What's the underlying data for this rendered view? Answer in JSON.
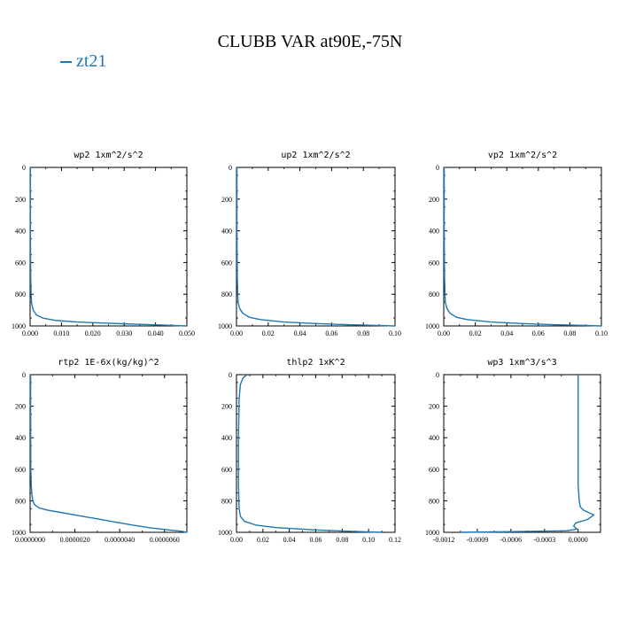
{
  "figure": {
    "title": "CLUBB VAR at90E,-75N",
    "legend": [
      {
        "label": "zt21",
        "color": "#1f77b4"
      }
    ]
  },
  "chart_data": [
    {
      "type": "line",
      "title": "wp2   1xm^2/s^2",
      "xlim": [
        0,
        0.05
      ],
      "ylim": [
        1000,
        0
      ],
      "x_ticks": [
        "0.000",
        "0.010",
        "0.020",
        "0.030",
        "0.040",
        "0.050"
      ],
      "y_ticks": [
        "0",
        "200",
        "400",
        "600",
        "800",
        "1000"
      ],
      "series": [
        {
          "name": "zt21",
          "x": [
            0.0001,
            0.0001,
            0.0002,
            0.0003,
            0.0005,
            0.001,
            0.002,
            0.004,
            0.008,
            0.015,
            0.025,
            0.035,
            0.045,
            0.05
          ],
          "y": [
            0,
            400,
            700,
            800,
            860,
            900,
            930,
            950,
            965,
            975,
            983,
            990,
            996,
            1000
          ]
        }
      ]
    },
    {
      "type": "line",
      "title": "up2   1xm^2/s^2",
      "xlim": [
        0,
        0.1
      ],
      "ylim": [
        1000,
        0
      ],
      "x_ticks": [
        "0.00",
        "0.02",
        "0.04",
        "0.06",
        "0.08",
        "0.10"
      ],
      "y_ticks": [
        "0",
        "200",
        "400",
        "600",
        "800",
        "1000"
      ],
      "series": [
        {
          "name": "zt21",
          "x": [
            0.0003,
            0.0003,
            0.0005,
            0.0008,
            0.001,
            0.002,
            0.004,
            0.008,
            0.015,
            0.03,
            0.05,
            0.07,
            0.09,
            0.1
          ],
          "y": [
            0,
            400,
            700,
            800,
            850,
            890,
            920,
            945,
            960,
            975,
            985,
            992,
            997,
            1000
          ]
        }
      ]
    },
    {
      "type": "line",
      "title": "vp2   1xm^2/s^2",
      "xlim": [
        0,
        0.1
      ],
      "ylim": [
        1000,
        0
      ],
      "x_ticks": [
        "0.00",
        "0.02",
        "0.04",
        "0.06",
        "0.08",
        "0.10"
      ],
      "y_ticks": [
        "0",
        "200",
        "400",
        "600",
        "800",
        "1000"
      ],
      "series": [
        {
          "name": "zt21",
          "x": [
            0.0003,
            0.0003,
            0.0005,
            0.0008,
            0.001,
            0.002,
            0.004,
            0.008,
            0.015,
            0.03,
            0.05,
            0.07,
            0.09,
            0.1
          ],
          "y": [
            0,
            400,
            700,
            800,
            850,
            890,
            920,
            945,
            960,
            975,
            985,
            992,
            997,
            1000
          ]
        }
      ]
    },
    {
      "type": "line",
      "title": "rtp2   1E-6x(kg/kg)^2",
      "xlim": [
        0,
        7e-06
      ],
      "ylim": [
        1000,
        0
      ],
      "x_ticks": [
        "0.0000000",
        "0.0000020",
        "0.0000040",
        "0.0000060"
      ],
      "x_tick_values": [
        0,
        2e-06,
        4e-06,
        6e-06
      ],
      "y_ticks": [
        "0",
        "200",
        "400",
        "600",
        "800",
        "1000"
      ],
      "series": [
        {
          "name": "zt21",
          "x": [
            2e-08,
            3e-08,
            5e-08,
            8e-08,
            1.2e-07,
            2e-07,
            4e-07,
            8e-07,
            1.4e-06,
            2.2e-06,
            3e-06,
            3.8e-06,
            4.6e-06,
            5.4e-06,
            6.2e-06,
            6.8e-06,
            7e-06
          ],
          "y": [
            0,
            600,
            700,
            760,
            800,
            825,
            845,
            860,
            875,
            895,
            915,
            935,
            955,
            972,
            985,
            994,
            1000
          ]
        }
      ]
    },
    {
      "type": "line",
      "title": "thlp2   1xK^2",
      "xlim": [
        0,
        0.12
      ],
      "ylim": [
        1000,
        0
      ],
      "x_ticks": [
        "0.00",
        "0.02",
        "0.04",
        "0.06",
        "0.08",
        "0.10",
        "0.12"
      ],
      "y_ticks": [
        "0",
        "200",
        "400",
        "600",
        "800",
        "1000"
      ],
      "series": [
        {
          "name": "zt21",
          "x": [
            0.008,
            0.005,
            0.003,
            0.002,
            0.0015,
            0.0015,
            0.002,
            0.003,
            0.006,
            0.015,
            0.03,
            0.06,
            0.09,
            0.11
          ],
          "y": [
            0,
            20,
            60,
            150,
            400,
            700,
            850,
            900,
            930,
            955,
            970,
            985,
            995,
            1000
          ]
        }
      ]
    },
    {
      "type": "line",
      "title": "wp3   1xm^3/s^3",
      "xlim": [
        -0.0012,
        0.0002
      ],
      "ylim": [
        1000,
        0
      ],
      "x_ticks": [
        "-0.0012",
        "-0.0009",
        "-0.0006",
        "-0.0003",
        "0.0000"
      ],
      "x_tick_values": [
        -0.0012,
        -0.0009,
        -0.0006,
        -0.0003,
        0
      ],
      "y_ticks": [
        "0",
        "200",
        "400",
        "600",
        "800",
        "1000"
      ],
      "series": [
        {
          "name": "zt21",
          "x": [
            0,
            0,
            0,
            1e-05,
            2e-05,
            5e-05,
            0.00014,
            8e-05,
            -2e-05,
            -4e-05,
            -1e-05,
            -0.0001,
            -0.0005,
            -0.00105
          ],
          "y": [
            0,
            400,
            700,
            800,
            840,
            860,
            890,
            920,
            940,
            960,
            980,
            990,
            995,
            1000
          ]
        }
      ]
    }
  ]
}
